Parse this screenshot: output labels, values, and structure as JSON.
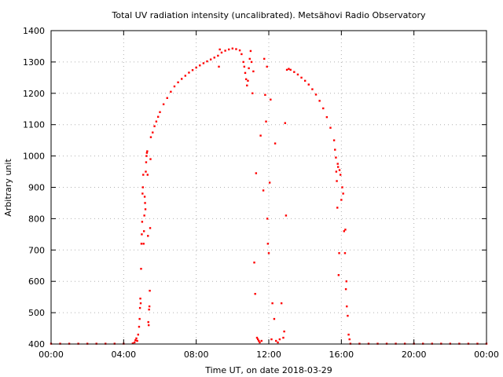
{
  "chart_data": {
    "type": "scatter",
    "title": "Total UV radiation intensity (uncalibrated). Metsähovi Radio Observatory",
    "xlabel": "Time UT, on date 2018-03-29",
    "ylabel": "Arbitrary unit",
    "xlim": [
      0,
      24
    ],
    "ylim": [
      400,
      1400
    ],
    "xticks": [
      0,
      4,
      8,
      12,
      16,
      20,
      24
    ],
    "xtick_labels": [
      "00:00",
      "04:00",
      "08:00",
      "12:00",
      "16:00",
      "20:00",
      "00:00"
    ],
    "yticks": [
      400,
      500,
      600,
      700,
      800,
      900,
      1000,
      1100,
      1200,
      1300,
      1400
    ],
    "ytick_labels": [
      "400",
      "500",
      "600",
      "700",
      "800",
      "900",
      "1000",
      "1100",
      "1200",
      "1300",
      "1400"
    ],
    "grid": true,
    "marker_color": "#ff0000",
    "x_unit": "hours UT",
    "series": [
      {
        "points": [
          [
            0.0,
            401
          ],
          [
            0.5,
            401
          ],
          [
            1.0,
            401
          ],
          [
            1.5,
            401
          ],
          [
            2.0,
            401
          ],
          [
            2.5,
            401
          ],
          [
            3.0,
            401
          ],
          [
            3.5,
            401
          ],
          [
            4.0,
            401
          ],
          [
            4.5,
            402
          ],
          [
            4.6,
            405
          ],
          [
            4.65,
            412
          ],
          [
            4.7,
            418
          ],
          [
            4.75,
            410
          ],
          [
            4.8,
            430
          ],
          [
            4.85,
            455
          ],
          [
            4.88,
            480
          ],
          [
            4.9,
            515
          ],
          [
            4.92,
            545
          ],
          [
            4.94,
            530
          ],
          [
            4.96,
            640
          ],
          [
            4.98,
            720
          ],
          [
            5.0,
            750
          ],
          [
            5.02,
            790
          ],
          [
            5.04,
            880
          ],
          [
            5.06,
            900
          ],
          [
            5.08,
            940
          ],
          [
            5.1,
            720
          ],
          [
            5.12,
            760
          ],
          [
            5.14,
            810
          ],
          [
            5.16,
            870
          ],
          [
            5.18,
            850
          ],
          [
            5.2,
            830
          ],
          [
            5.22,
            950
          ],
          [
            5.24,
            980
          ],
          [
            5.26,
            1000
          ],
          [
            5.28,
            1010
          ],
          [
            5.3,
            1015
          ],
          [
            5.32,
            940
          ],
          [
            5.34,
            745
          ],
          [
            5.36,
            470
          ],
          [
            5.38,
            460
          ],
          [
            5.4,
            510
          ],
          [
            5.42,
            520
          ],
          [
            5.44,
            570
          ],
          [
            5.46,
            770
          ],
          [
            5.48,
            990
          ],
          [
            5.5,
            1060
          ],
          [
            5.6,
            1075
          ],
          [
            5.7,
            1095
          ],
          [
            5.8,
            1110
          ],
          [
            5.9,
            1125
          ],
          [
            6.0,
            1140
          ],
          [
            6.2,
            1165
          ],
          [
            6.4,
            1185
          ],
          [
            6.6,
            1205
          ],
          [
            6.8,
            1222
          ],
          [
            7.0,
            1235
          ],
          [
            7.2,
            1246
          ],
          [
            7.4,
            1256
          ],
          [
            7.6,
            1266
          ],
          [
            7.8,
            1274
          ],
          [
            8.0,
            1282
          ],
          [
            8.2,
            1289
          ],
          [
            8.4,
            1296
          ],
          [
            8.6,
            1302
          ],
          [
            8.8,
            1308
          ],
          [
            9.0,
            1314
          ],
          [
            9.2,
            1320
          ],
          [
            9.25,
            1285
          ],
          [
            9.3,
            1340
          ],
          [
            9.4,
            1330
          ],
          [
            9.6,
            1336
          ],
          [
            9.8,
            1340
          ],
          [
            10.0,
            1343
          ],
          [
            10.2,
            1341
          ],
          [
            10.4,
            1337
          ],
          [
            10.5,
            1325
          ],
          [
            10.6,
            1300
          ],
          [
            10.65,
            1285
          ],
          [
            10.7,
            1265
          ],
          [
            10.75,
            1245
          ],
          [
            10.8,
            1225
          ],
          [
            10.85,
            1240
          ],
          [
            10.9,
            1280
          ],
          [
            10.95,
            1310
          ],
          [
            11.0,
            1335
          ],
          [
            11.05,
            1300
          ],
          [
            11.1,
            1200
          ],
          [
            11.15,
            1270
          ],
          [
            11.2,
            660
          ],
          [
            11.25,
            560
          ],
          [
            11.3,
            945
          ],
          [
            11.35,
            420
          ],
          [
            11.4,
            415
          ],
          [
            11.45,
            410
          ],
          [
            11.5,
            405
          ],
          [
            11.55,
            1065
          ],
          [
            11.6,
            410
          ],
          [
            11.7,
            890
          ],
          [
            11.75,
            1310
          ],
          [
            11.8,
            1195
          ],
          [
            11.85,
            1110
          ],
          [
            11.9,
            1285
          ],
          [
            11.92,
            800
          ],
          [
            11.95,
            720
          ],
          [
            12.0,
            690
          ],
          [
            12.05,
            915
          ],
          [
            12.1,
            1180
          ],
          [
            12.15,
            415
          ],
          [
            12.2,
            530
          ],
          [
            12.3,
            480
          ],
          [
            12.35,
            1040
          ],
          [
            12.4,
            410
          ],
          [
            12.5,
            405
          ],
          [
            12.6,
            415
          ],
          [
            12.7,
            530
          ],
          [
            12.8,
            420
          ],
          [
            12.85,
            440
          ],
          [
            12.9,
            1105
          ],
          [
            12.95,
            810
          ],
          [
            13.0,
            1275
          ],
          [
            13.1,
            1278
          ],
          [
            13.2,
            1275
          ],
          [
            13.4,
            1268
          ],
          [
            13.6,
            1260
          ],
          [
            13.8,
            1250
          ],
          [
            14.0,
            1240
          ],
          [
            14.2,
            1228
          ],
          [
            14.4,
            1213
          ],
          [
            14.6,
            1196
          ],
          [
            14.8,
            1176
          ],
          [
            15.0,
            1152
          ],
          [
            15.2,
            1124
          ],
          [
            15.4,
            1090
          ],
          [
            15.6,
            1050
          ],
          [
            15.65,
            1020
          ],
          [
            15.7,
            995
          ],
          [
            15.72,
            950
          ],
          [
            15.75,
            920
          ],
          [
            15.78,
            835
          ],
          [
            15.8,
            975
          ],
          [
            15.82,
            965
          ],
          [
            15.85,
            620
          ],
          [
            15.88,
            690
          ],
          [
            15.9,
            955
          ],
          [
            15.95,
            940
          ],
          [
            16.0,
            860
          ],
          [
            16.05,
            900
          ],
          [
            16.1,
            880
          ],
          [
            16.15,
            760
          ],
          [
            16.2,
            690
          ],
          [
            16.22,
            765
          ],
          [
            16.25,
            575
          ],
          [
            16.28,
            600
          ],
          [
            16.3,
            520
          ],
          [
            16.35,
            490
          ],
          [
            16.4,
            430
          ],
          [
            16.45,
            415
          ],
          [
            16.5,
            401
          ],
          [
            17.0,
            401
          ],
          [
            17.5,
            401
          ],
          [
            18.0,
            401
          ],
          [
            18.5,
            401
          ],
          [
            19.0,
            401
          ],
          [
            19.5,
            401
          ],
          [
            20.0,
            401
          ],
          [
            20.5,
            401
          ],
          [
            21.0,
            401
          ],
          [
            21.5,
            401
          ],
          [
            22.0,
            401
          ],
          [
            22.5,
            401
          ],
          [
            23.0,
            401
          ],
          [
            23.5,
            401
          ],
          [
            24.0,
            401
          ]
        ]
      }
    ]
  }
}
